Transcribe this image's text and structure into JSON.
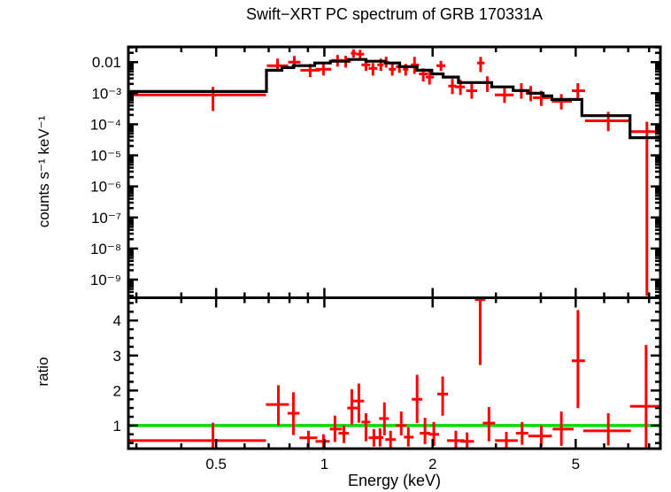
{
  "chart_data": {
    "type": "scatter",
    "title": "Swift−XRT PC spectrum of GRB 170331A",
    "colors": {
      "data": "#ff0000",
      "model": "#000000",
      "ratio_reference_line": "#00dd00",
      "frame": "#000000",
      "background": "#ffffff"
    },
    "x_axis": {
      "label": "Energy (keV)",
      "scale": "log",
      "range_kev": [
        0.285,
        8.6
      ],
      "major_ticks": [
        0.5,
        1,
        2,
        5
      ],
      "major_tick_labels": [
        "0.5",
        "1",
        "2",
        "5"
      ],
      "minor_ticks": [
        0.3,
        0.4,
        0.6,
        0.7,
        0.8,
        0.9,
        3,
        4,
        6,
        7,
        8
      ]
    },
    "spectrum_panel": {
      "y_axis": {
        "label": "counts s⁻¹ keV⁻¹",
        "scale": "log",
        "range": [
          2.6e-10,
          0.031
        ],
        "major_ticks": [
          0.01,
          0.001,
          0.0001,
          1e-05,
          1e-06,
          1e-07,
          1e-08,
          1e-09
        ],
        "major_tick_labels": [
          "0.01",
          "10⁻³",
          "10⁻⁴",
          "10⁻⁵",
          "10⁻⁶",
          "10⁻⁷",
          "10⁻⁸",
          "10⁻⁹"
        ]
      },
      "model_steps_kev_value": [
        [
          0.285,
          0.69,
          0.00114
        ],
        [
          0.69,
          0.762,
          0.0055
        ],
        [
          0.762,
          0.82,
          0.0067
        ],
        [
          0.82,
          0.94,
          0.0077
        ],
        [
          0.94,
          1.04,
          0.0094
        ],
        [
          1.04,
          1.165,
          0.0107
        ],
        [
          1.165,
          1.305,
          0.0122
        ],
        [
          1.305,
          1.477,
          0.0107
        ],
        [
          1.477,
          1.62,
          0.0094
        ],
        [
          1.62,
          1.81,
          0.0072
        ],
        [
          1.81,
          1.99,
          0.0055
        ],
        [
          1.99,
          2.14,
          0.0042
        ],
        [
          2.14,
          2.36,
          0.0033
        ],
        [
          2.36,
          2.92,
          0.0022
        ],
        [
          2.92,
          3.35,
          0.0016
        ],
        [
          3.35,
          3.69,
          0.00122
        ],
        [
          3.69,
          4.06,
          0.001
        ],
        [
          4.06,
          4.29,
          0.00082
        ],
        [
          4.29,
          5.2,
          0.00063
        ],
        [
          5.2,
          7.08,
          0.00019
        ],
        [
          7.08,
          8.6,
          3.7e-05
        ]
      ],
      "points_e_elo_ehi_v_vlo_vhi": [
        [
          0.49,
          0.285,
          0.688,
          0.00088,
          0.00027,
          0.0016
        ],
        [
          0.741,
          0.692,
          0.793,
          0.0077,
          0.0052,
          0.013
        ],
        [
          0.825,
          0.793,
          0.858,
          0.01,
          0.0063,
          0.0158
        ],
        [
          0.913,
          0.858,
          0.972,
          0.0055,
          0.0033,
          0.0088
        ],
        [
          0.994,
          0.945,
          1.046,
          0.0059,
          0.0037,
          0.0094
        ],
        [
          1.088,
          1.046,
          1.133,
          0.0114,
          0.0072,
          0.017
        ],
        [
          1.146,
          1.107,
          1.185,
          0.0107,
          0.0067,
          0.016
        ],
        [
          1.205,
          1.185,
          1.226,
          0.0193,
          0.014,
          0.026
        ],
        [
          1.257,
          1.226,
          1.29,
          0.0181,
          0.013,
          0.025
        ],
        [
          1.305,
          1.268,
          1.342,
          0.0082,
          0.0052,
          0.012
        ],
        [
          1.365,
          1.327,
          1.404,
          0.0063,
          0.0037,
          0.0094
        ],
        [
          1.436,
          1.404,
          1.46,
          0.0082,
          0.0052,
          0.013
        ],
        [
          1.485,
          1.46,
          1.511,
          0.01,
          0.0067,
          0.015
        ],
        [
          1.545,
          1.511,
          1.581,
          0.0059,
          0.0037,
          0.0088
        ],
        [
          1.617,
          1.581,
          1.655,
          0.0072,
          0.0045,
          0.0105
        ],
        [
          1.683,
          1.655,
          1.712,
          0.0059,
          0.0037,
          0.0088
        ],
        [
          1.781,
          1.741,
          1.832,
          0.0082,
          0.0042,
          0.0148
        ],
        [
          1.884,
          1.832,
          1.938,
          0.0042,
          0.0024,
          0.0063
        ],
        [
          1.96,
          1.916,
          2.016,
          0.0033,
          0.0019,
          0.0052
        ],
        [
          2.11,
          2.05,
          2.17,
          0.0077,
          0.0052,
          0.011
        ],
        [
          2.27,
          2.21,
          2.33,
          0.0017,
          0.00094,
          0.0029
        ],
        [
          2.39,
          2.31,
          2.46,
          0.0016,
          0.00088,
          0.0027
        ],
        [
          2.57,
          2.48,
          2.66,
          0.0012,
          0.00067,
          0.0021
        ],
        [
          2.72,
          2.66,
          2.79,
          0.0094,
          0.0048,
          0.0148
        ],
        [
          2.84,
          2.77,
          2.91,
          0.0022,
          0.0011,
          0.0035
        ],
        [
          3.17,
          2.98,
          3.36,
          0.00088,
          0.00049,
          0.0015
        ],
        [
          3.53,
          3.39,
          3.67,
          0.0012,
          0.00067,
          0.0021
        ],
        [
          3.75,
          3.63,
          3.88,
          0.001,
          0.00055,
          0.0017
        ],
        [
          4.01,
          3.8,
          4.24,
          0.00072,
          0.00039,
          0.0012
        ],
        [
          4.56,
          4.29,
          4.88,
          0.00055,
          0.0003,
          0.00094
        ],
        [
          5.07,
          4.88,
          5.31,
          0.0012,
          0.00063,
          0.0021
        ],
        [
          6.16,
          5.31,
          7.12,
          0.00013,
          6e-05,
          0.00025
        ],
        [
          7.89,
          7.08,
          8.6,
          5.8e-05,
          3e-10,
          0.00012
        ]
      ]
    },
    "ratio_panel": {
      "y_axis": {
        "label": "ratio",
        "scale": "linear",
        "range": [
          0.34,
          4.65
        ],
        "major_ticks": [
          1,
          2,
          3,
          4
        ],
        "major_tick_labels": [
          "1",
          "2",
          "3",
          "4"
        ],
        "minor_tick_step": 0.25
      },
      "reference_line_value": 1,
      "points_e_elo_ehi_r_rlo_rhi": [
        [
          0.49,
          0.285,
          0.688,
          0.57,
          0.34,
          1.08
        ],
        [
          0.745,
          0.688,
          0.797,
          1.6,
          1.0,
          2.15
        ],
        [
          0.82,
          0.79,
          0.853,
          1.35,
          0.73,
          1.95
        ],
        [
          0.903,
          0.853,
          0.956,
          0.65,
          0.34,
          0.85
        ],
        [
          0.994,
          0.945,
          1.035,
          0.55,
          0.34,
          0.75
        ],
        [
          1.07,
          1.035,
          1.12,
          0.9,
          0.53,
          1.28
        ],
        [
          1.133,
          1.095,
          1.17,
          0.78,
          0.5,
          1.0
        ],
        [
          1.192,
          1.158,
          1.24,
          1.5,
          1.03,
          2.04
        ],
        [
          1.247,
          1.198,
          1.29,
          1.7,
          1.08,
          2.2
        ],
        [
          1.305,
          1.268,
          1.342,
          1.1,
          0.55,
          1.35
        ],
        [
          1.373,
          1.327,
          1.412,
          0.65,
          0.4,
          0.9
        ],
        [
          1.428,
          1.388,
          1.46,
          0.66,
          0.4,
          0.92
        ],
        [
          1.469,
          1.42,
          1.511,
          1.2,
          0.72,
          1.66
        ],
        [
          1.528,
          1.477,
          1.581,
          0.6,
          0.35,
          0.85
        ],
        [
          1.636,
          1.581,
          1.692,
          1.0,
          0.72,
          1.4
        ],
        [
          1.712,
          1.664,
          1.771,
          0.67,
          0.4,
          0.95
        ],
        [
          1.811,
          1.751,
          1.873,
          1.75,
          1.07,
          2.45
        ],
        [
          1.905,
          1.842,
          1.971,
          0.78,
          0.47,
          1.22
        ],
        [
          2.016,
          1.949,
          2.085,
          0.75,
          0.42,
          1.1
        ],
        [
          2.133,
          2.062,
          2.207,
          1.9,
          1.28,
          2.4
        ],
        [
          2.321,
          2.194,
          2.453,
          0.57,
          0.34,
          0.85
        ],
        [
          2.494,
          2.386,
          2.608,
          0.55,
          0.34,
          0.8
        ],
        [
          2.712,
          2.623,
          2.805,
          4.6,
          2.73,
          4.65
        ],
        [
          2.869,
          2.758,
          2.983,
          1.07,
          0.55,
          1.53
        ],
        [
          3.207,
          2.983,
          3.449,
          0.57,
          0.34,
          0.82
        ],
        [
          3.547,
          3.41,
          3.69,
          0.78,
          0.45,
          1.1
        ],
        [
          4.012,
          3.69,
          4.291,
          0.7,
          0.4,
          1.0
        ],
        [
          4.561,
          4.315,
          4.933,
          0.9,
          0.42,
          1.4
        ],
        [
          5.073,
          4.878,
          5.307,
          2.85,
          1.5,
          4.3
        ],
        [
          6.161,
          5.248,
          7.12,
          0.85,
          0.43,
          1.35
        ],
        [
          7.848,
          7.08,
          8.6,
          1.55,
          0.34,
          3.3
        ]
      ]
    }
  }
}
